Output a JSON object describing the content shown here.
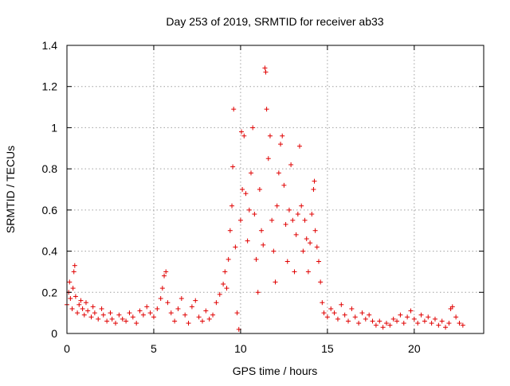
{
  "chart_data": {
    "type": "scatter",
    "title": "Day 253 of 2019, SRMTID for receiver ab33",
    "xlabel": "GPS time / hours",
    "ylabel": "SRMTID / TECUs",
    "xlim": [
      0,
      24
    ],
    "ylim": [
      0,
      1.4
    ],
    "xticks": [
      0,
      5,
      10,
      15,
      20
    ],
    "xtick_labels": [
      "0",
      "5",
      "10",
      "15",
      "20"
    ],
    "yticks": [
      0,
      0.2,
      0.4,
      0.6,
      0.8,
      1,
      1.2,
      1.4
    ],
    "ytick_labels": [
      "0",
      "0.2",
      "0.4",
      "0.6",
      "0.8",
      "1",
      "1.2",
      "1.4"
    ],
    "grid": true,
    "marker": "plus",
    "color": "#e00000",
    "series": [
      {
        "name": "SRMTID",
        "points": [
          [
            0.0,
            0.14
          ],
          [
            0.1,
            0.2
          ],
          [
            0.15,
            0.25
          ],
          [
            0.2,
            0.17
          ],
          [
            0.3,
            0.12
          ],
          [
            0.35,
            0.22
          ],
          [
            0.4,
            0.3
          ],
          [
            0.45,
            0.33
          ],
          [
            0.5,
            0.18
          ],
          [
            0.6,
            0.1
          ],
          [
            0.7,
            0.14
          ],
          [
            0.8,
            0.16
          ],
          [
            0.9,
            0.12
          ],
          [
            1.0,
            0.09
          ],
          [
            1.1,
            0.15
          ],
          [
            1.2,
            0.11
          ],
          [
            1.4,
            0.08
          ],
          [
            1.5,
            0.13
          ],
          [
            1.6,
            0.1
          ],
          [
            1.8,
            0.07
          ],
          [
            2.0,
            0.12
          ],
          [
            2.1,
            0.09
          ],
          [
            2.3,
            0.06
          ],
          [
            2.5,
            0.1
          ],
          [
            2.6,
            0.07
          ],
          [
            2.8,
            0.05
          ],
          [
            3.0,
            0.09
          ],
          [
            3.2,
            0.07
          ],
          [
            3.4,
            0.06
          ],
          [
            3.6,
            0.1
          ],
          [
            3.8,
            0.08
          ],
          [
            4.0,
            0.05
          ],
          [
            4.2,
            0.11
          ],
          [
            4.4,
            0.09
          ],
          [
            4.6,
            0.13
          ],
          [
            4.8,
            0.1
          ],
          [
            5.0,
            0.08
          ],
          [
            5.2,
            0.12
          ],
          [
            5.4,
            0.17
          ],
          [
            5.5,
            0.22
          ],
          [
            5.6,
            0.28
          ],
          [
            5.7,
            0.3
          ],
          [
            5.8,
            0.15
          ],
          [
            6.0,
            0.1
          ],
          [
            6.2,
            0.06
          ],
          [
            6.4,
            0.12
          ],
          [
            6.6,
            0.17
          ],
          [
            6.8,
            0.09
          ],
          [
            7.0,
            0.05
          ],
          [
            7.2,
            0.13
          ],
          [
            7.4,
            0.16
          ],
          [
            7.6,
            0.08
          ],
          [
            7.8,
            0.06
          ],
          [
            8.0,
            0.11
          ],
          [
            8.2,
            0.07
          ],
          [
            8.4,
            0.09
          ],
          [
            8.6,
            0.15
          ],
          [
            8.8,
            0.19
          ],
          [
            9.0,
            0.24
          ],
          [
            9.1,
            0.3
          ],
          [
            9.2,
            0.22
          ],
          [
            9.3,
            0.36
          ],
          [
            9.4,
            0.5
          ],
          [
            9.5,
            0.62
          ],
          [
            9.55,
            0.81
          ],
          [
            9.6,
            1.09
          ],
          [
            9.7,
            0.42
          ],
          [
            9.8,
            0.1
          ],
          [
            9.9,
            0.02
          ],
          [
            10.0,
            0.55
          ],
          [
            10.05,
            0.98
          ],
          [
            10.1,
            0.7
          ],
          [
            10.2,
            0.96
          ],
          [
            10.3,
            0.68
          ],
          [
            10.4,
            0.45
          ],
          [
            10.5,
            0.6
          ],
          [
            10.6,
            0.78
          ],
          [
            10.7,
            1.0
          ],
          [
            10.8,
            0.58
          ],
          [
            10.9,
            0.36
          ],
          [
            11.0,
            0.2
          ],
          [
            11.1,
            0.7
          ],
          [
            11.2,
            0.5
          ],
          [
            11.3,
            0.43
          ],
          [
            11.4,
            1.29
          ],
          [
            11.45,
            1.27
          ],
          [
            11.5,
            1.09
          ],
          [
            11.6,
            0.85
          ],
          [
            11.7,
            0.96
          ],
          [
            11.8,
            0.55
          ],
          [
            11.9,
            0.4
          ],
          [
            12.0,
            0.25
          ],
          [
            12.1,
            0.62
          ],
          [
            12.2,
            0.78
          ],
          [
            12.3,
            0.92
          ],
          [
            12.4,
            0.96
          ],
          [
            12.5,
            0.72
          ],
          [
            12.6,
            0.53
          ],
          [
            12.7,
            0.35
          ],
          [
            12.8,
            0.6
          ],
          [
            12.9,
            0.82
          ],
          [
            13.0,
            0.55
          ],
          [
            13.1,
            0.3
          ],
          [
            13.2,
            0.48
          ],
          [
            13.3,
            0.58
          ],
          [
            13.4,
            0.91
          ],
          [
            13.5,
            0.62
          ],
          [
            13.6,
            0.4
          ],
          [
            13.7,
            0.55
          ],
          [
            13.8,
            0.46
          ],
          [
            13.9,
            0.3
          ],
          [
            14.0,
            0.44
          ],
          [
            14.1,
            0.58
          ],
          [
            14.2,
            0.7
          ],
          [
            14.25,
            0.74
          ],
          [
            14.3,
            0.5
          ],
          [
            14.4,
            0.42
          ],
          [
            14.5,
            0.35
          ],
          [
            14.6,
            0.25
          ],
          [
            14.7,
            0.15
          ],
          [
            14.8,
            0.1
          ],
          [
            15.0,
            0.08
          ],
          [
            15.2,
            0.12
          ],
          [
            15.4,
            0.1
          ],
          [
            15.6,
            0.07
          ],
          [
            15.8,
            0.14
          ],
          [
            16.0,
            0.09
          ],
          [
            16.2,
            0.06
          ],
          [
            16.4,
            0.12
          ],
          [
            16.6,
            0.08
          ],
          [
            16.8,
            0.05
          ],
          [
            17.0,
            0.1
          ],
          [
            17.2,
            0.07
          ],
          [
            17.4,
            0.09
          ],
          [
            17.6,
            0.06
          ],
          [
            17.8,
            0.04
          ],
          [
            18.0,
            0.06
          ],
          [
            18.2,
            0.03
          ],
          [
            18.4,
            0.05
          ],
          [
            18.6,
            0.04
          ],
          [
            18.8,
            0.07
          ],
          [
            19.0,
            0.06
          ],
          [
            19.2,
            0.09
          ],
          [
            19.4,
            0.05
          ],
          [
            19.6,
            0.08
          ],
          [
            19.8,
            0.11
          ],
          [
            20.0,
            0.07
          ],
          [
            20.2,
            0.05
          ],
          [
            20.4,
            0.09
          ],
          [
            20.6,
            0.06
          ],
          [
            20.8,
            0.08
          ],
          [
            21.0,
            0.05
          ],
          [
            21.2,
            0.07
          ],
          [
            21.4,
            0.04
          ],
          [
            21.6,
            0.06
          ],
          [
            21.8,
            0.03
          ],
          [
            22.0,
            0.05
          ],
          [
            22.1,
            0.12
          ],
          [
            22.2,
            0.13
          ],
          [
            22.4,
            0.08
          ],
          [
            22.6,
            0.05
          ],
          [
            22.8,
            0.04
          ]
        ]
      }
    ]
  }
}
